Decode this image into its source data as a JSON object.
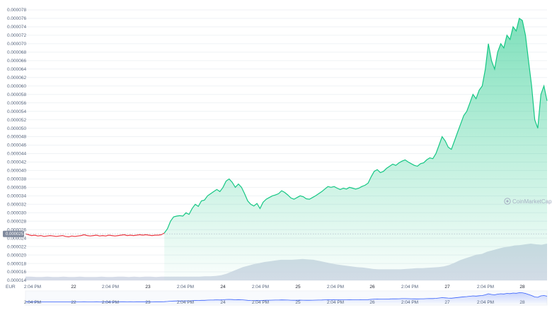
{
  "chart_data": {
    "type": "line",
    "currency": "EUR",
    "watermark": "CoinMarketCap",
    "current_price_label": "0.000025",
    "colors": {
      "up": "#16c784",
      "down": "#ea3943",
      "volume": "#cfd6e4",
      "navigator": "#3861fb",
      "badge": "#808a9d"
    },
    "ylim": [
      1.4e-05,
      7.8e-05
    ],
    "y_ticks": [
      "0.000014",
      "0.000016",
      "0.000018",
      "0.000020",
      "0.000022",
      "0.000024",
      "0.000026",
      "0.000028",
      "0.000030",
      "0.000032",
      "0.000034",
      "0.000036",
      "0.000038",
      "0.000040",
      "0.000042",
      "0.000044",
      "0.000046",
      "0.000048",
      "0.000050",
      "0.000052",
      "0.000054",
      "0.000056",
      "0.000058",
      "0.000060",
      "0.000062",
      "0.000064",
      "0.000066",
      "0.000068",
      "0.000070",
      "0.000072",
      "0.000074",
      "0.000076",
      "0.000078"
    ],
    "x_ticks": [
      {
        "label": "2:04 PM",
        "bold": false
      },
      {
        "label": "22",
        "bold": true
      },
      {
        "label": "2:04 PM",
        "bold": false
      },
      {
        "label": "23",
        "bold": true
      },
      {
        "label": "2:04 PM",
        "bold": false
      },
      {
        "label": "24",
        "bold": true
      },
      {
        "label": "2:04 PM",
        "bold": false
      },
      {
        "label": "25",
        "bold": true
      },
      {
        "label": "2:04 PM",
        "bold": false
      },
      {
        "label": "26",
        "bold": true
      },
      {
        "label": "2:04 PM",
        "bold": false
      },
      {
        "label": "27",
        "bold": true
      },
      {
        "label": "2:04 PM",
        "bold": false
      },
      {
        "label": "28",
        "bold": true
      }
    ],
    "baseline": 2.5e-05,
    "series": [
      {
        "values": [
          2.5e-05,
          2.48e-05,
          2.46e-05,
          2.47e-05,
          2.45e-05,
          2.46e-05,
          2.44e-05,
          2.45e-05,
          2.46e-05,
          2.45e-05,
          2.44e-05,
          2.45e-05,
          2.46e-05,
          2.44e-05,
          2.43e-05,
          2.45e-05,
          2.44e-05,
          2.45e-05,
          2.46e-05,
          2.48e-05,
          2.46e-05,
          2.45e-05,
          2.46e-05,
          2.47e-05,
          2.45e-05,
          2.46e-05,
          2.45e-05,
          2.47e-05,
          2.46e-05,
          2.45e-05,
          2.46e-05,
          2.47e-05,
          2.48e-05,
          2.46e-05,
          2.47e-05,
          2.46e-05,
          2.47e-05,
          2.48e-05,
          2.47e-05,
          2.48e-05,
          2.47e-05,
          2.46e-05,
          2.47e-05,
          2.47e-05,
          2.48e-05,
          2.52e-05,
          2.62e-05,
          2.8e-05,
          2.9e-05,
          2.92e-05,
          2.93e-05,
          2.92e-05,
          3e-05,
          2.96e-05,
          3.1e-05,
          3.2e-05,
          3.15e-05,
          3.28e-05,
          3.3e-05,
          3.4e-05,
          3.45e-05,
          3.5e-05,
          3.55e-05,
          3.5e-05,
          3.6e-05,
          3.75e-05,
          3.8e-05,
          3.72e-05,
          3.6e-05,
          3.68e-05,
          3.6e-05,
          3.45e-05,
          3.28e-05,
          3.2e-05,
          3.16e-05,
          3.22e-05,
          3.1e-05,
          3.25e-05,
          3.32e-05,
          3.36e-05,
          3.4e-05,
          3.42e-05,
          3.45e-05,
          3.52e-05,
          3.48e-05,
          3.42e-05,
          3.35e-05,
          3.32e-05,
          3.36e-05,
          3.4e-05,
          3.38e-05,
          3.33e-05,
          3.32e-05,
          3.36e-05,
          3.4e-05,
          3.45e-05,
          3.5e-05,
          3.56e-05,
          3.62e-05,
          3.6e-05,
          3.62e-05,
          3.58e-05,
          3.55e-05,
          3.58e-05,
          3.56e-05,
          3.6e-05,
          3.58e-05,
          3.56e-05,
          3.58e-05,
          3.62e-05,
          3.65e-05,
          3.7e-05,
          3.85e-05,
          3.98e-05,
          4.02e-05,
          3.95e-05,
          3.98e-05,
          4.05e-05,
          4.1e-05,
          4.15e-05,
          4.12e-05,
          4.18e-05,
          4.22e-05,
          4.25e-05,
          4.2e-05,
          4.16e-05,
          4.12e-05,
          4.1e-05,
          4.16e-05,
          4.18e-05,
          4.25e-05,
          4.3e-05,
          4.28e-05,
          4.4e-05,
          4.6e-05,
          4.8e-05,
          4.7e-05,
          4.55e-05,
          4.5e-05,
          4.7e-05,
          4.9e-05,
          5.1e-05,
          5.3e-05,
          5.4e-05,
          5.6e-05,
          5.8e-05,
          5.7e-05,
          5.9e-05,
          6e-05,
          6.4e-05,
          7e-05,
          6.6e-05,
          6.4e-05,
          6.8e-05,
          7e-05,
          6.9e-05,
          7.2e-05,
          7.1e-05,
          7.4e-05,
          7.3e-05,
          7.6e-05,
          7.55e-05,
          7.2e-05,
          6.6e-05,
          6e-05,
          5.2e-05,
          5e-05,
          5.8e-05,
          6e-05,
          5.65e-05
        ]
      }
    ],
    "volume": [
      0.1,
      0.1,
      0.09,
      0.09,
      0.1,
      0.09,
      0.09,
      0.1,
      0.09,
      0.09,
      0.1,
      0.09,
      0.09,
      0.09,
      0.1,
      0.09,
      0.09,
      0.1,
      0.1,
      0.09,
      0.1,
      0.09,
      0.1,
      0.1,
      0.09,
      0.1,
      0.1,
      0.1,
      0.1,
      0.1,
      0.1,
      0.1,
      0.1,
      0.11,
      0.11,
      0.12,
      0.14,
      0.18,
      0.24,
      0.3,
      0.36,
      0.4,
      0.44,
      0.47,
      0.5,
      0.52,
      0.54,
      0.56,
      0.56,
      0.56,
      0.57,
      0.58,
      0.57,
      0.56,
      0.53,
      0.5,
      0.47,
      0.44,
      0.42,
      0.4,
      0.38,
      0.36,
      0.35,
      0.33,
      0.31,
      0.3,
      0.3,
      0.3,
      0.3,
      0.3,
      0.31,
      0.32,
      0.33,
      0.33,
      0.34,
      0.35,
      0.36,
      0.38,
      0.42,
      0.48,
      0.55,
      0.6,
      0.65,
      0.7,
      0.72,
      0.78,
      0.82,
      0.86,
      0.9,
      0.92,
      0.95,
      0.96,
      0.98,
      1.0,
      0.98,
      0.97,
      1.0
    ]
  }
}
